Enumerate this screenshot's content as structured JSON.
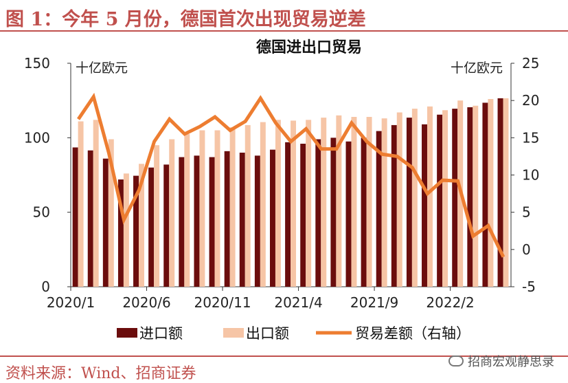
{
  "figure": {
    "label": "图 1：今年 5 月份，德国首次出现贸易逆差",
    "source": "资料来源：Wind、招商证券",
    "watermark": "招商宏观静思录",
    "watermark_icon": "wechat-icon"
  },
  "colors": {
    "accent": "#c0504d",
    "imports": "#6b0d0d",
    "exports": "#f6c5a6",
    "balance": "#ed7d31"
  },
  "chart_data": {
    "type": "bar",
    "title": "德国进出口贸易",
    "left_unit": "十亿欧元",
    "right_unit": "十亿欧元",
    "x": [
      "2020/1",
      "2020/2",
      "2020/3",
      "2020/4",
      "2020/5",
      "2020/6",
      "2020/7",
      "2020/8",
      "2020/9",
      "2020/10",
      "2020/11",
      "2020/12",
      "2021/1",
      "2021/2",
      "2021/3",
      "2021/4",
      "2021/5",
      "2021/6",
      "2021/7",
      "2021/8",
      "2021/9",
      "2021/10",
      "2021/11",
      "2021/12",
      "2022/1",
      "2022/2",
      "2022/3",
      "2022/4",
      "2022/5"
    ],
    "x_tick_labels": [
      "2020/1",
      "2020/6",
      "2020/11",
      "2021/4",
      "2021/9",
      "2022/2"
    ],
    "x_tick_every": 5,
    "ylim_left": [
      0,
      150
    ],
    "yticks_left": [
      0,
      50,
      100,
      150
    ],
    "ylim_right": [
      -5,
      25
    ],
    "yticks_right": [
      -5,
      0,
      5,
      10,
      15,
      20,
      25
    ],
    "legend_position": "bottom",
    "series": [
      {
        "name": "进口额",
        "kind": "bar",
        "axis": "left",
        "values": [
          93.5,
          91.5,
          86,
          72,
          74.5,
          80,
          82,
          87,
          88,
          87,
          91,
          90,
          88,
          92,
          97,
          96,
          99,
          100,
          97.5,
          100,
          104.5,
          108.5,
          113.5,
          109,
          115.5,
          119.5,
          120.5,
          123.5,
          126.5
        ]
      },
      {
        "name": "出口额",
        "kind": "bar",
        "axis": "left",
        "values": [
          111,
          112,
          99,
          76,
          82.5,
          95,
          99,
          102.5,
          105,
          105,
          107,
          108.5,
          110.5,
          112,
          111.5,
          112,
          113.5,
          115,
          114,
          114,
          113,
          117,
          119.5,
          121,
          118.5,
          125,
          121.5,
          126,
          126.5
        ]
      },
      {
        "name": "贸易差额（右轴）",
        "kind": "line",
        "axis": "right",
        "values": [
          17.5,
          20.5,
          13,
          4,
          8,
          14.5,
          17.5,
          15.5,
          16.5,
          17.8,
          16,
          17.2,
          20.3,
          17,
          14.5,
          16.2,
          13.5,
          13.5,
          17,
          14.5,
          12.8,
          12.5,
          11,
          7.5,
          9.3,
          9.2,
          1.8,
          3.2,
          -1
        ]
      }
    ]
  }
}
